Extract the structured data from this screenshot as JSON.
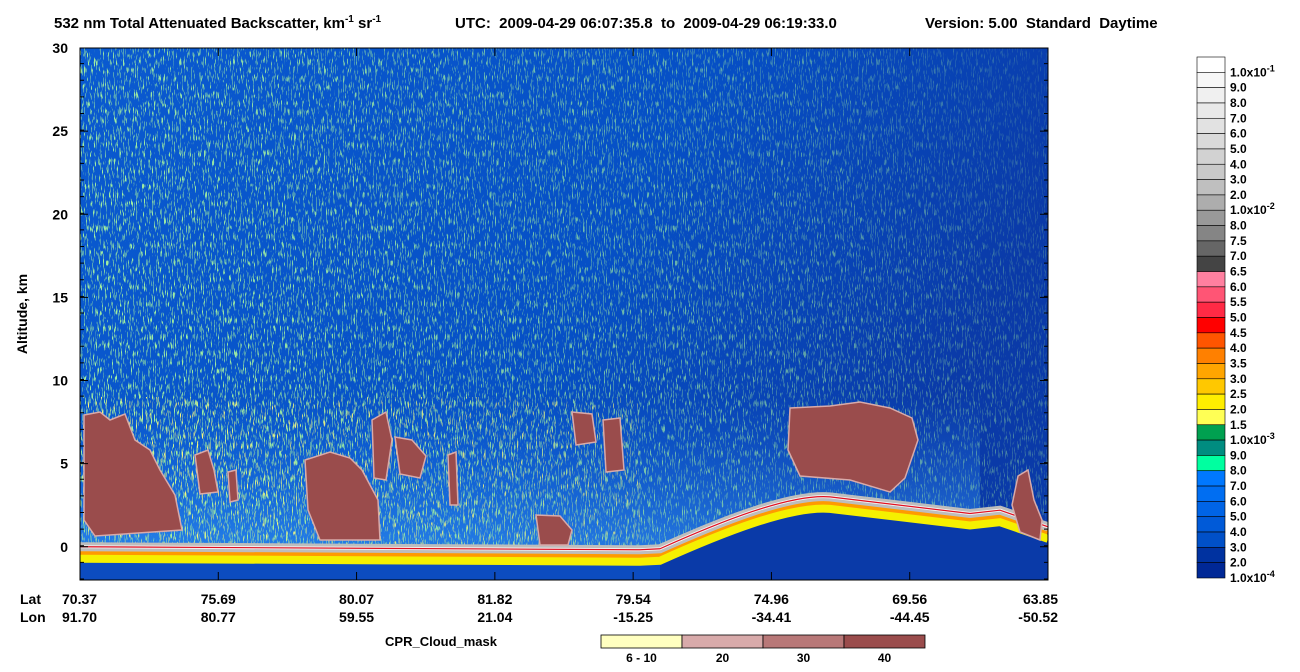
{
  "chart_data": {
    "type": "heatmap",
    "title": [
      "532 nm Total Attenuated Backscatter, km",
      "-1",
      " sr",
      "-1"
    ],
    "time_range": "UTC:  2009-04-29 06:07:35.8  to  2009-04-29 06:19:33.0",
    "version": "Version: 5.00  Standard  Daytime",
    "ylabel": "Altitude, km",
    "ylim": [
      -2,
      30
    ],
    "yticks": [
      0,
      5,
      10,
      15,
      20,
      25,
      30
    ],
    "x_row_labels": [
      "Lat",
      "Lon"
    ],
    "lat": [
      "70.37",
      "75.69",
      "80.07",
      "81.82",
      "79.54",
      "74.96",
      "69.56",
      "63.85"
    ],
    "lon": [
      "91.70",
      "80.77",
      "59.55",
      "21.04",
      "-15.25",
      "-34.41",
      "-44.45",
      "-50.52"
    ],
    "colorbar": [
      {
        "label": "1.0x10",
        "sup": "-1",
        "color": "#ffffff"
      },
      {
        "label": "9.0",
        "color": "#f7f7f7"
      },
      {
        "label": "8.0",
        "color": "#f0f0f0"
      },
      {
        "label": "7.0",
        "color": "#e9e9e9"
      },
      {
        "label": "6.0",
        "color": "#e2e2e2"
      },
      {
        "label": "5.0",
        "color": "#dadada"
      },
      {
        "label": "4.0",
        "color": "#d2d2d2"
      },
      {
        "label": "3.0",
        "color": "#c9c9c9"
      },
      {
        "label": "2.0",
        "color": "#bfbfbf"
      },
      {
        "label": "1.0x10",
        "sup": "-2",
        "color": "#adadad"
      },
      {
        "label": "8.0",
        "color": "#999999"
      },
      {
        "label": "7.5",
        "color": "#858585"
      },
      {
        "label": "7.0",
        "color": "#666666"
      },
      {
        "label": "6.5",
        "color": "#444444"
      },
      {
        "label": "6.0",
        "color": "#ff80a0"
      },
      {
        "label": "5.5",
        "color": "#ff5575"
      },
      {
        "label": "5.0",
        "color": "#ff2a45"
      },
      {
        "label": "4.5",
        "color": "#ff0000"
      },
      {
        "label": "4.0",
        "color": "#ff5500"
      },
      {
        "label": "3.5",
        "color": "#ff8000"
      },
      {
        "label": "3.0",
        "color": "#ffa500"
      },
      {
        "label": "2.5",
        "color": "#ffc800"
      },
      {
        "label": "2.0",
        "color": "#ffee00"
      },
      {
        "label": "1.5",
        "color": "#ffff55"
      },
      {
        "label": "1.0x10",
        "sup": "-3",
        "color": "#00a050"
      },
      {
        "label": "9.0",
        "color": "#008c80"
      },
      {
        "label": "8.0",
        "color": "#00ffa0"
      },
      {
        "label": "7.0",
        "color": "#0078ff"
      },
      {
        "label": "6.0",
        "color": "#006ef2"
      },
      {
        "label": "5.0",
        "color": "#0064e6"
      },
      {
        "label": "4.0",
        "color": "#005ad8"
      },
      {
        "label": "3.0",
        "color": "#0050c8"
      },
      {
        "label": "2.0",
        "color": "#0032a0"
      },
      {
        "label": "1.0x10",
        "sup": "-4",
        "color": "#002896"
      }
    ],
    "mask_title": "CPR_Cloud_mask",
    "mask_classes": [
      "6 - 10",
      "20",
      "30",
      "40"
    ],
    "mask_colors": [
      "#ffffc0",
      "#d8aaaa",
      "#b87878",
      "#9a4c4c"
    ]
  }
}
